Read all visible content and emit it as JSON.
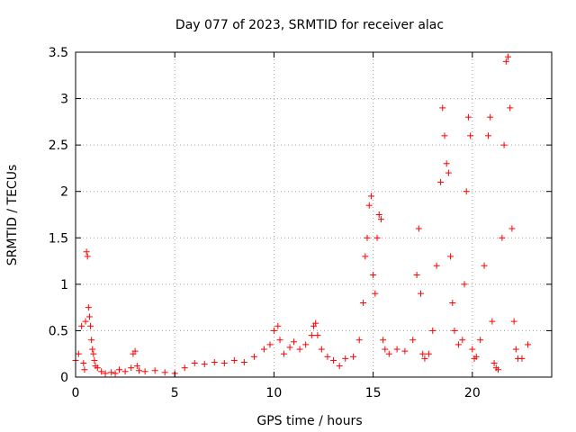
{
  "chart_data": {
    "type": "scatter",
    "title": "Day 077 of 2023, SRMTID for receiver alac",
    "xlabel": "GPS time / hours",
    "ylabel": "SRMTID / TECUs",
    "xlim": [
      0,
      24
    ],
    "ylim": [
      0,
      3.5
    ],
    "xticks": [
      0,
      5,
      10,
      15,
      20
    ],
    "xtick_labels": [
      "0",
      "5",
      "10",
      "15",
      "20"
    ],
    "yticks": [
      0,
      0.5,
      1,
      1.5,
      2,
      2.5,
      3,
      3.5
    ],
    "ytick_labels": [
      "0",
      "0.5",
      "1",
      "1.5",
      "2",
      "2.5",
      "3",
      "3.5"
    ],
    "grid": true,
    "marker": "+",
    "color": "#ff0000",
    "series": [
      {
        "name": "SRMTID",
        "x": [
          0.0,
          0.15,
          0.3,
          0.4,
          0.45,
          0.5,
          0.55,
          0.6,
          0.65,
          0.7,
          0.75,
          0.8,
          0.85,
          0.9,
          0.95,
          1.0,
          1.1,
          1.3,
          1.5,
          1.8,
          2.0,
          2.2,
          2.5,
          2.8,
          2.9,
          3.0,
          3.1,
          3.2,
          3.5,
          4.0,
          4.5,
          5.0,
          5.5,
          6.0,
          6.5,
          7.0,
          7.5,
          8.0,
          8.5,
          9.0,
          9.5,
          9.8,
          10.0,
          10.2,
          10.3,
          10.5,
          10.8,
          11.0,
          11.3,
          11.6,
          11.9,
          12.0,
          12.1,
          12.2,
          12.4,
          12.7,
          13.0,
          13.3,
          13.6,
          14.0,
          14.3,
          14.5,
          14.6,
          14.7,
          14.8,
          14.9,
          15.0,
          15.1,
          15.2,
          15.3,
          15.4,
          15.5,
          15.6,
          15.8,
          16.2,
          16.6,
          17.0,
          17.2,
          17.3,
          17.4,
          17.5,
          17.6,
          17.8,
          18.0,
          18.2,
          18.4,
          18.5,
          18.6,
          18.7,
          18.8,
          18.9,
          19.0,
          19.1,
          19.3,
          19.5,
          19.6,
          19.7,
          19.8,
          19.9,
          20.0,
          20.1,
          20.2,
          20.4,
          20.6,
          20.8,
          20.9,
          21.0,
          21.1,
          21.2,
          21.3,
          21.5,
          21.6,
          21.7,
          21.8,
          21.9,
          22.0,
          22.1,
          22.2,
          22.3,
          22.5,
          22.8
        ],
        "values": [
          0.18,
          0.25,
          0.55,
          0.15,
          0.08,
          0.6,
          1.35,
          1.3,
          0.75,
          0.65,
          0.55,
          0.4,
          0.3,
          0.25,
          0.18,
          0.12,
          0.1,
          0.06,
          0.04,
          0.05,
          0.04,
          0.08,
          0.06,
          0.1,
          0.25,
          0.28,
          0.12,
          0.07,
          0.06,
          0.07,
          0.05,
          0.04,
          0.1,
          0.15,
          0.14,
          0.16,
          0.15,
          0.18,
          0.16,
          0.22,
          0.3,
          0.35,
          0.5,
          0.55,
          0.4,
          0.25,
          0.32,
          0.38,
          0.3,
          0.35,
          0.45,
          0.55,
          0.58,
          0.45,
          0.3,
          0.22,
          0.18,
          0.12,
          0.2,
          0.22,
          0.4,
          0.8,
          1.3,
          1.5,
          1.85,
          1.95,
          1.1,
          0.9,
          1.5,
          1.75,
          1.7,
          0.4,
          0.3,
          0.25,
          0.3,
          0.28,
          0.4,
          1.1,
          1.6,
          0.9,
          0.25,
          0.2,
          0.25,
          0.5,
          1.2,
          2.1,
          2.9,
          2.6,
          2.3,
          2.2,
          1.3,
          0.8,
          0.5,
          0.35,
          0.4,
          1.0,
          2.0,
          2.8,
          2.6,
          0.3,
          0.2,
          0.22,
          0.4,
          1.2,
          2.6,
          2.8,
          0.6,
          0.15,
          0.1,
          0.08,
          1.5,
          2.5,
          3.4,
          3.45,
          2.9,
          1.6,
          0.6,
          0.3,
          0.2,
          0.2,
          0.35
        ]
      }
    ]
  }
}
